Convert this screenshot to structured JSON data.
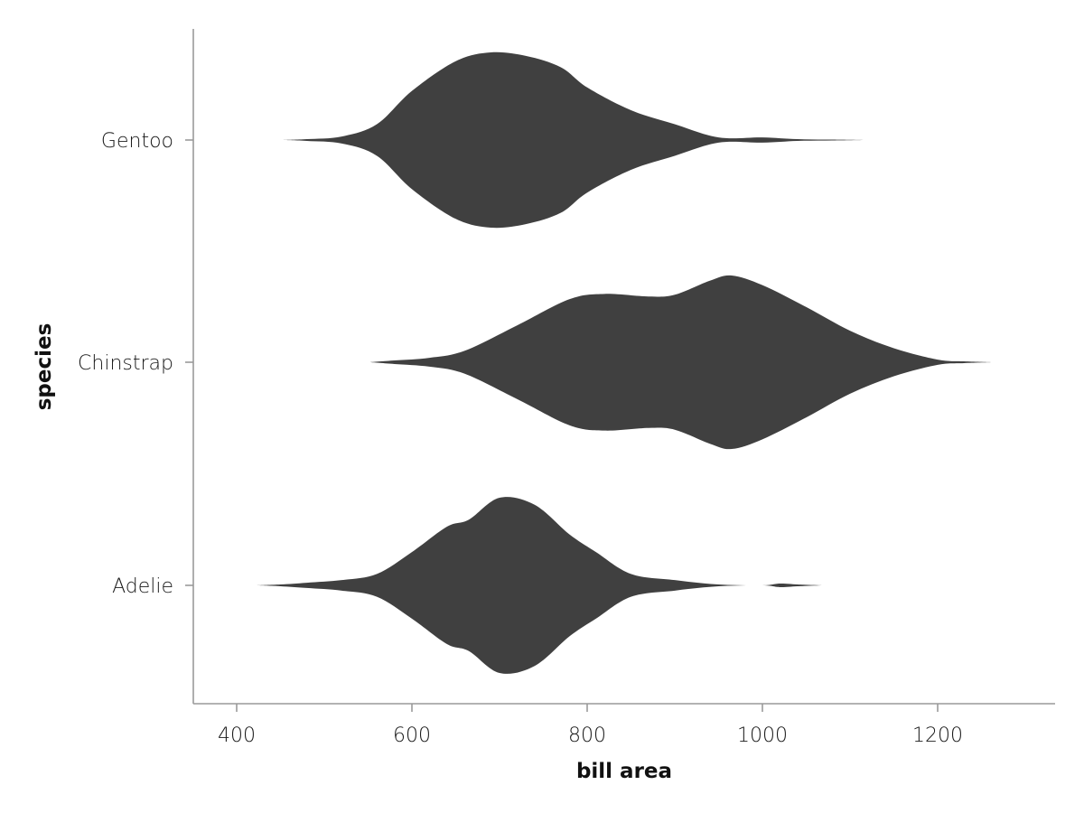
{
  "chart_data": {
    "type": "violin",
    "orientation": "horizontal",
    "xlabel": "bill area",
    "ylabel": "species",
    "xlim": [
      350,
      1335
    ],
    "xticks": [
      400,
      600,
      800,
      1000,
      1200
    ],
    "categories": [
      "Adelie",
      "Chinstrap",
      "Gentoo"
    ],
    "fill_color": "#404040",
    "grid": false,
    "series": [
      {
        "category": "Adelie",
        "profile": [
          [
            422,
            0.0
          ],
          [
            450,
            0.01
          ],
          [
            480,
            0.03
          ],
          [
            520,
            0.06
          ],
          [
            560,
            0.13
          ],
          [
            600,
            0.38
          ],
          [
            640,
            0.67
          ],
          [
            665,
            0.75
          ],
          [
            700,
            1.0
          ],
          [
            740,
            0.92
          ],
          [
            780,
            0.58
          ],
          [
            810,
            0.38
          ],
          [
            850,
            0.13
          ],
          [
            900,
            0.06
          ],
          [
            950,
            0.01
          ],
          [
            1000,
            0.0
          ],
          [
            1020,
            0.02
          ],
          [
            1040,
            0.01
          ],
          [
            1068,
            0.0
          ]
        ]
      },
      {
        "category": "Chinstrap",
        "profile": [
          [
            552,
            0.0
          ],
          [
            580,
            0.02
          ],
          [
            620,
            0.05
          ],
          [
            660,
            0.13
          ],
          [
            720,
            0.42
          ],
          [
            780,
            0.72
          ],
          [
            820,
            0.78
          ],
          [
            870,
            0.75
          ],
          [
            900,
            0.77
          ],
          [
            940,
            0.93
          ],
          [
            965,
            0.99
          ],
          [
            1000,
            0.88
          ],
          [
            1050,
            0.63
          ],
          [
            1100,
            0.36
          ],
          [
            1150,
            0.16
          ],
          [
            1200,
            0.03
          ],
          [
            1230,
            0.01
          ],
          [
            1262,
            0.0
          ]
        ]
      },
      {
        "category": "Gentoo",
        "profile": [
          [
            452,
            0.0
          ],
          [
            480,
            0.01
          ],
          [
            520,
            0.04
          ],
          [
            560,
            0.18
          ],
          [
            600,
            0.56
          ],
          [
            650,
            0.9
          ],
          [
            690,
            1.0
          ],
          [
            730,
            0.96
          ],
          [
            770,
            0.83
          ],
          [
            800,
            0.6
          ],
          [
            850,
            0.34
          ],
          [
            900,
            0.18
          ],
          [
            950,
            0.03
          ],
          [
            1000,
            0.03
          ],
          [
            1040,
            0.01
          ],
          [
            1080,
            0.005
          ],
          [
            1118,
            0.0
          ]
        ]
      }
    ]
  }
}
